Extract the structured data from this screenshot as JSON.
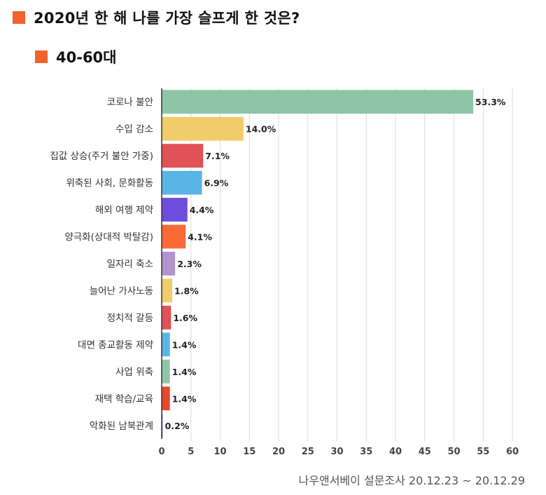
{
  "header": {
    "title": "2020년 한 해 나를 가장 슬프게 한 것은?",
    "subtitle": "40-60대"
  },
  "colors": {
    "accent_square": "#f0632a"
  },
  "source": "나우앤서베이 설문조사 20.12.23 ~ 20.12.29",
  "chart_data": {
    "type": "bar",
    "orientation": "horizontal",
    "title": "2020년 한 해 나를 가장 슬프게 한 것은?",
    "subtitle": "40-60대",
    "categories": [
      "코로나 불안",
      "수입 감소",
      "집값 상승(주거 불안 가중)",
      "위축된 사회, 문화활동",
      "해외 여행 제약",
      "양극화(상대적 박탈감)",
      "일자리 축소",
      "늘어난 가사노동",
      "정치적 갈등",
      "대면 종교활동 제약",
      "사업 위축",
      "재택 학습/교육",
      "악화된 남북관계"
    ],
    "values": [
      53.3,
      14.0,
      7.1,
      6.9,
      4.4,
      4.1,
      2.3,
      1.8,
      1.6,
      1.4,
      1.4,
      1.4,
      0.2
    ],
    "value_labels": [
      "53.3%",
      "14.0%",
      "7.1%",
      "6.9%",
      "4.4%",
      "4.1%",
      "2.3%",
      "1.8%",
      "1.6%",
      "1.4%",
      "1.4%",
      "1.4%",
      "0.2%"
    ],
    "colors": [
      "#8ec5a7",
      "#f1cc6a",
      "#e05257",
      "#5bb4e6",
      "#6d4ddb",
      "#f96a35",
      "#b194ce",
      "#f1cc6a",
      "#e05257",
      "#5bb4e6",
      "#8ec5a7",
      "#e44a2a",
      "#b194ce"
    ],
    "xlim": [
      0,
      60
    ],
    "xticks": [
      0,
      5,
      10,
      15,
      20,
      25,
      30,
      35,
      40,
      45,
      50,
      55,
      60
    ],
    "grid": true,
    "legend": "none"
  }
}
